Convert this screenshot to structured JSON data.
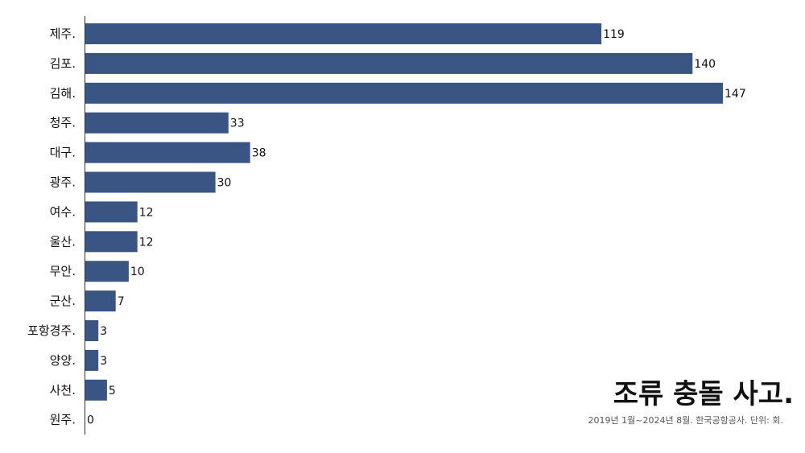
{
  "chart_data": {
    "type": "bar",
    "orientation": "horizontal",
    "title": "조류 충돌 사고.",
    "subtitle": "2019년 1월~2024년 8월. 한국공항공사. 단위: 회.",
    "categories": [
      "제주.",
      "김포.",
      "김해.",
      "청주.",
      "대구.",
      "광주.",
      "여수.",
      "울산.",
      "무안.",
      "군산.",
      "포항경주.",
      "양양.",
      "사천.",
      "원주."
    ],
    "values": [
      119,
      140,
      147,
      33,
      38,
      30,
      12,
      12,
      10,
      7,
      3,
      3,
      5,
      0
    ],
    "xlim": [
      0,
      150
    ],
    "grid": false,
    "bar_color": "#3a5584"
  }
}
